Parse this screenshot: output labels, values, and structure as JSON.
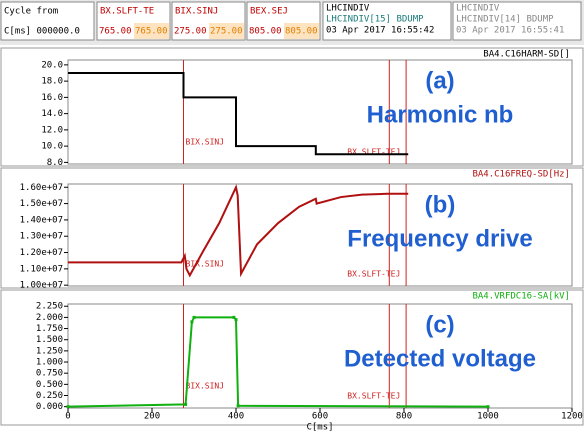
{
  "header": {
    "cycle_label": "Cycle from",
    "time_label": "C[ms] 000000.0",
    "events": [
      {
        "name": "BX.SLFT-TE",
        "v1": "765.00",
        "v2": "765.00"
      },
      {
        "name": "BIX.SINJ",
        "v1": "275.00",
        "v2": "275.00"
      },
      {
        "name": "BEX.SEJ",
        "v1": "805.00",
        "v2": "805.00"
      }
    ],
    "current": [
      "LHCINDIV",
      "LHCINDIV[15] BDUMP",
      "03 Apr 2017 16:55:42"
    ],
    "previous": [
      "LHCINDIV",
      "LHCINDIV[14] BDUMP",
      "03 Apr 2017 16:55:41"
    ]
  },
  "markers": [
    {
      "label": "BIX.SINJ",
      "x": 275
    },
    {
      "label": "BX.SLFT-TEJ",
      "x": 765
    },
    {
      "x": 805
    }
  ],
  "xlim": [
    0,
    1200
  ],
  "xticks": [
    0,
    200,
    400,
    600,
    800,
    1000,
    1200
  ],
  "xlabel": "C[ms]",
  "panels": [
    {
      "letter": "(a)",
      "caption": "Harmonic nb",
      "signal": "BA4.C16HARM-SD[]",
      "color": "#000000",
      "x": [
        0,
        275,
        275,
        400,
        400,
        590,
        590,
        810
      ],
      "y": [
        19,
        19,
        16,
        16,
        10,
        10,
        9,
        9
      ],
      "ylim": [
        7.8,
        20.6
      ],
      "yticks": [
        {
          "value": 8,
          "label": "8.0"
        },
        {
          "value": 10,
          "label": "10.0"
        },
        {
          "value": 12,
          "label": "12.0"
        },
        {
          "value": 14,
          "label": "14.0"
        },
        {
          "value": 16,
          "label": "16.0"
        },
        {
          "value": 18,
          "label": "18.0"
        },
        {
          "value": 20,
          "label": "20.0"
        }
      ]
    },
    {
      "letter": "(b)",
      "caption": "Frequency drive",
      "signal": "BA4.C16FREQ-SD[Hz]",
      "color": "#b01010",
      "x": [
        0,
        270,
        278,
        282,
        290,
        320,
        360,
        400,
        404,
        412,
        450,
        500,
        550,
        590,
        592,
        650,
        700,
        760,
        810
      ],
      "y": [
        11400000,
        11400000,
        11800000,
        11000000,
        10600000,
        12000000,
        13800000,
        16000000,
        15500000,
        10700000,
        12500000,
        13800000,
        14800000,
        15300000,
        15000000,
        15400000,
        15550000,
        15600000,
        15600000
      ],
      "ylim": [
        9950000,
        16200000
      ],
      "yticks": [
        {
          "value": 10000000,
          "label": "1.00e+07"
        },
        {
          "value": 11000000,
          "label": "1.10e+07"
        },
        {
          "value": 12000000,
          "label": "1.20e+07"
        },
        {
          "value": 13000000,
          "label": "1.30e+07"
        },
        {
          "value": 14000000,
          "label": "1.40e+07"
        },
        {
          "value": 15000000,
          "label": "1.50e+07"
        },
        {
          "value": 16000000,
          "label": "1.60e+07"
        }
      ]
    },
    {
      "letter": "(c)",
      "caption": "Detected voltage",
      "signal": "BA4.VRFDC16-SA[kV]",
      "color": "#10b010",
      "x": [
        0,
        280,
        295,
        300,
        395,
        400,
        405,
        1000
      ],
      "y": [
        0,
        0.05,
        1.9,
        2.0,
        2.0,
        1.95,
        0.02,
        0
      ],
      "ylim": [
        -0.03,
        2.3
      ],
      "yticks": [
        {
          "value": 0,
          "label": "0.000"
        },
        {
          "value": 0.25,
          "label": "0.250"
        },
        {
          "value": 0.5,
          "label": "0.500"
        },
        {
          "value": 0.75,
          "label": "0.750"
        },
        {
          "value": 1,
          "label": "1.000"
        },
        {
          "value": 1.25,
          "label": "1.250"
        },
        {
          "value": 1.5,
          "label": "1.500"
        },
        {
          "value": 1.75,
          "label": "1.750"
        },
        {
          "value": 2,
          "label": "2.000"
        },
        {
          "value": 2.25,
          "label": "2.250"
        }
      ]
    }
  ]
}
